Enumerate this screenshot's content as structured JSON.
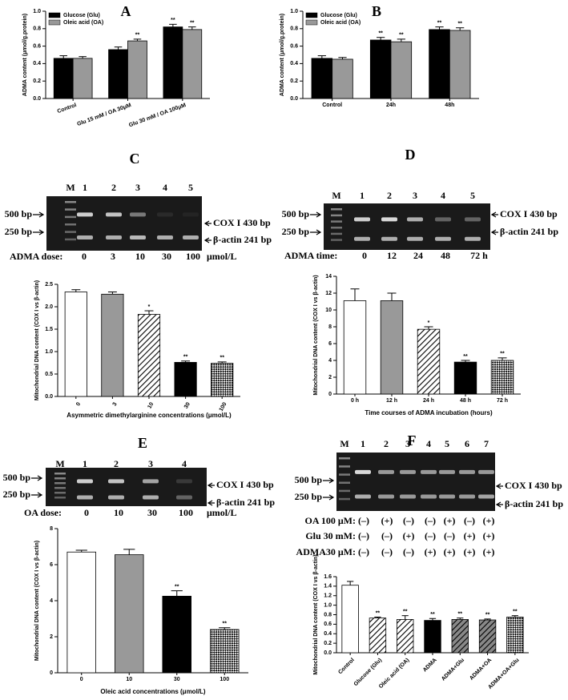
{
  "chart_data": [
    {
      "type": "grouped_bar",
      "title": "A",
      "ylabel": "ADMA content (μmol/g.protein)",
      "categories": [
        "Control",
        "Glu 15 mM / OA 30μM",
        "Glu 30 mM / OA 100μM"
      ],
      "series": [
        {
          "name": "Glucose (Glu)",
          "color": "#000000",
          "values": [
            0.46,
            0.56,
            0.82
          ],
          "errors": [
            0.03,
            0.03,
            0.03
          ],
          "annotations": [
            null,
            null,
            "**"
          ]
        },
        {
          "name": "Oleic acid (OA)",
          "color": "#999999",
          "values": [
            0.46,
            0.66,
            0.79
          ],
          "errors": [
            0.02,
            0.02,
            0.03
          ],
          "annotations": [
            null,
            "**",
            "**"
          ]
        }
      ],
      "ylim": [
        0,
        1.0
      ],
      "yticks": [
        {
          "value": 0,
          "label": "0.0"
        },
        {
          "value": 0.2,
          "label": "0.2"
        },
        {
          "value": 0.4,
          "label": "0.4"
        },
        {
          "value": 0.6,
          "label": "0.6"
        },
        {
          "value": 0.8,
          "label": "0.8"
        },
        {
          "value": 1.0,
          "label": "1.0"
        }
      ],
      "legend": "upper left"
    },
    {
      "type": "grouped_bar",
      "title": "B",
      "ylabel": "ADMA content (μmol/g.protein)",
      "categories": [
        "Control",
        "24h",
        "48h"
      ],
      "series": [
        {
          "name": "Glucose (Glu)",
          "color": "#000000",
          "values": [
            0.46,
            0.67,
            0.79
          ],
          "errors": [
            0.03,
            0.03,
            0.03
          ],
          "annotations": [
            null,
            "**",
            "**"
          ]
        },
        {
          "name": "Oleic acid (OA)",
          "color": "#999999",
          "values": [
            0.45,
            0.65,
            0.78
          ],
          "errors": [
            0.02,
            0.03,
            0.03
          ],
          "annotations": [
            null,
            "**",
            "**"
          ]
        }
      ],
      "ylim": [
        0,
        1.0
      ],
      "yticks": [
        {
          "value": 0,
          "label": "0.0"
        },
        {
          "value": 0.2,
          "label": "0.2"
        },
        {
          "value": 0.4,
          "label": "0.4"
        },
        {
          "value": 0.6,
          "label": "0.6"
        },
        {
          "value": 0.8,
          "label": "0.8"
        },
        {
          "value": 1.0,
          "label": "1.0"
        }
      ],
      "legend": "upper left"
    },
    {
      "type": "bar",
      "title": "C",
      "ylabel": "Mitochondrial DNA content (COX I vs β-actin)",
      "xlabel": "Asymmetric dimethylarginine concentrations (μmol/L)",
      "categories": [
        "0",
        "3",
        "10",
        "30",
        "100"
      ],
      "values": [
        2.33,
        2.28,
        1.83,
        0.76,
        0.74
      ],
      "errors": [
        0.05,
        0.05,
        0.08,
        0.03,
        0.03
      ],
      "annotations": [
        null,
        null,
        "*",
        "**",
        "**"
      ],
      "fills": [
        "#ffffff",
        "#999999",
        "hatch",
        "#000000",
        "checker"
      ],
      "ylim": [
        0,
        2.5
      ],
      "yticks": [
        {
          "value": 0,
          "label": "0.0"
        },
        {
          "value": 0.5,
          "label": "0.5"
        },
        {
          "value": 1.0,
          "label": "1.0"
        },
        {
          "value": 1.5,
          "label": "1.5"
        },
        {
          "value": 2.0,
          "label": "2.0"
        },
        {
          "value": 2.5,
          "label": "2.5"
        }
      ],
      "gel": {
        "lanes": [
          "M",
          "1",
          "2",
          "3",
          "4",
          "5"
        ],
        "markers": [
          "500 bp",
          "250 bp"
        ],
        "bands": [
          "COX I 430 bp",
          "β-actin 241 bp"
        ],
        "dose_label": "ADMA dose:",
        "doses": [
          "0",
          "3",
          "10",
          "30",
          "100"
        ],
        "unit": "μmol/L"
      }
    },
    {
      "type": "bar",
      "title": "D",
      "ylabel": "Mitochondrial DNA content (COX I vs β-actin)",
      "xlabel": "Time courses of ADMA incubation (hours)",
      "categories": [
        "0 h",
        "12 h",
        "24 h",
        "48 h",
        "72 h"
      ],
      "values": [
        11.1,
        11.1,
        7.7,
        3.8,
        4.0
      ],
      "errors": [
        1.4,
        0.9,
        0.3,
        0.2,
        0.3
      ],
      "annotations": [
        null,
        null,
        "*",
        "**",
        "**"
      ],
      "fills": [
        "#ffffff",
        "#999999",
        "hatch",
        "#000000",
        "checker"
      ],
      "ylim": [
        0,
        14
      ],
      "yticks": [
        0,
        2,
        4,
        6,
        8,
        10,
        12,
        14
      ],
      "gel": {
        "lanes": [
          "M",
          "1",
          "2",
          "3",
          "4",
          "5"
        ],
        "markers": [
          "500 bp",
          "250 bp"
        ],
        "bands": [
          "COX I 430 bp",
          "β-actin 241 bp"
        ],
        "dose_label": "ADMA time:",
        "doses": [
          "0",
          "12",
          "24",
          "48",
          "72 h"
        ]
      }
    },
    {
      "type": "bar",
      "xlabel": "Oleic acid concentrations (μmol/L)",
      "title": "E",
      "ylabel": "Mitochondrial DNA content (COX I vs β-actin)",
      "categories": [
        "0",
        "10",
        "30",
        "100"
      ],
      "values": [
        6.7,
        6.55,
        4.25,
        2.4
      ],
      "errors": [
        0.1,
        0.3,
        0.3,
        0.1
      ],
      "annotations": [
        null,
        null,
        "**",
        "**"
      ],
      "fills": [
        "#ffffff",
        "#999999",
        "#000000",
        "checker"
      ],
      "ylim": [
        0,
        8
      ],
      "yticks": [
        0,
        2,
        4,
        6,
        8
      ],
      "gel": {
        "lanes": [
          "M",
          "1",
          "2",
          "3",
          "4"
        ],
        "markers": [
          "500 bp",
          "250 bp"
        ],
        "bands": [
          "COX I 430 bp",
          "β-actin 241 bp"
        ],
        "dose_label": "OA dose:",
        "doses": [
          "0",
          "10",
          "30",
          "100"
        ],
        "unit": "μmol/L"
      }
    },
    {
      "type": "bar",
      "title": "F",
      "ylabel": "Mitochondrial DNA content (COX I vs β-actin)",
      "categories": [
        "Control",
        "Glucose (Glu)",
        "Oleic acid (OA)",
        "ADMA",
        "ADMA+Glu",
        "ADMA+OA",
        "ADMA+OA+Glu"
      ],
      "values": [
        1.42,
        0.73,
        0.7,
        0.68,
        0.7,
        0.69,
        0.75
      ],
      "errors": [
        0.08,
        0.02,
        0.08,
        0.04,
        0.03,
        0.02,
        0.03
      ],
      "annotations": [
        null,
        "**",
        "**",
        "**",
        "**",
        "**",
        "**"
      ],
      "fills": [
        "#ffffff",
        "hatch",
        "hatch",
        "#000000",
        "hatchgray",
        "hatchgray",
        "checker"
      ],
      "ylim": [
        0,
        1.6
      ],
      "yticks": [
        {
          "value": 0,
          "label": "0.0"
        },
        {
          "value": 0.2,
          "label": "0.2"
        },
        {
          "value": 0.4,
          "label": "0.4"
        },
        {
          "value": 0.6,
          "label": "0.6"
        },
        {
          "value": 0.8,
          "label": "0.8"
        },
        {
          "value": 1.0,
          "label": "1.0"
        },
        {
          "value": 1.2,
          "label": "1.2"
        },
        {
          "value": 1.4,
          "label": "1.4"
        },
        {
          "value": 1.6,
          "label": "1.6"
        }
      ],
      "gel": {
        "lanes": [
          "M",
          "1",
          "2",
          "3",
          "4",
          "5",
          "6",
          "7"
        ],
        "markers": [
          "500 bp",
          "250 bp"
        ],
        "bands": [
          "COX I 430 bp",
          "β-actin 241 bp"
        ],
        "conditions": [
          {
            "label": "OA 100 μM:",
            "marks": [
              "(–)",
              "(+)",
              "(–)",
              "(–)",
              "(+)",
              "(–)",
              "(+)"
            ]
          },
          {
            "label": "Glu 30 mM:",
            "marks": [
              "(–)",
              "(–)",
              "(+)",
              "(–)",
              "(–)",
              "(+)",
              "(+)"
            ]
          },
          {
            "label": "ADMA30 μM:",
            "marks": [
              "(–)",
              "(–)",
              "(–)",
              "(+)",
              "(+)",
              "(+)",
              "(+)"
            ]
          }
        ]
      }
    }
  ]
}
